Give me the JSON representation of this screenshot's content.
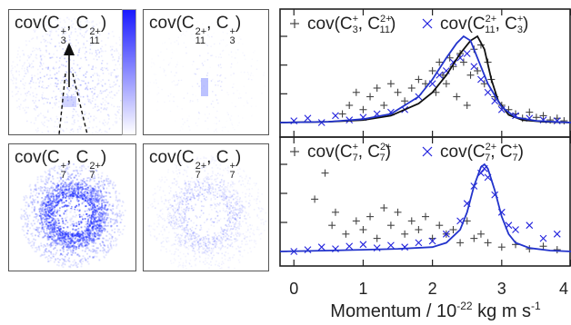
{
  "images": [
    {
      "id": "img-tl",
      "label_main": "cov(C",
      "sub1": "3",
      "sup1": "+",
      "mid": ", C",
      "sub2": "11",
      "sup2": "2+",
      "end": ")",
      "pattern": "narrow-cone"
    },
    {
      "id": "img-tr",
      "label_main": "cov(C",
      "sub1": "11",
      "sup1": "2+",
      "mid": ", C",
      "sub2": "3",
      "sup2": "+",
      "end": ")",
      "pattern": "faint-center"
    },
    {
      "id": "img-bl",
      "label_main": "cov(C",
      "sub1": "7",
      "sup1": "+",
      "mid": ", C",
      "sub2": "7",
      "sup2": "2+",
      "end": ")",
      "pattern": "dense-ring"
    },
    {
      "id": "img-br",
      "label_main": "cov(C",
      "sub1": "7",
      "sup1": "2+",
      "mid": ", C",
      "sub2": "7",
      "sup2": "+",
      "end": ")",
      "pattern": "faint-ring"
    }
  ],
  "colorbar": {
    "color_high": "#1a1aff",
    "color_low": "#ffffff"
  },
  "chart_data": [
    {
      "type": "scatter",
      "panel": "top",
      "xlabel": "Momentum / 10",
      "xlabel_exp": "-22",
      "xlabel_units": "kg m s",
      "xlabel_units_exp": "-1",
      "xlim": [
        -0.2,
        4.0
      ],
      "x_ticks": [
        "0",
        "1",
        "2",
        "3",
        "4"
      ],
      "legend": [
        {
          "marker": "+",
          "color": "#444444",
          "pre": "cov(C",
          "sub1": "3",
          "sup1": "+",
          "mid": ", C",
          "sub2": "11",
          "sup2": "2+",
          "end": ")"
        },
        {
          "marker": "×",
          "color": "#2222dd",
          "pre": "cov(C",
          "sub1": "11",
          "sup1": "2+",
          "mid": ", C",
          "sub2": "3",
          "sup2": "+",
          "end": ")"
        }
      ],
      "series": [
        {
          "marker": "+",
          "color": "#444444",
          "x": [
            0.7,
            0.8,
            0.9,
            1.0,
            1.1,
            1.2,
            1.3,
            1.4,
            1.5,
            1.6,
            1.7,
            1.8,
            1.9,
            2.0,
            2.05,
            2.1,
            2.15,
            2.2,
            2.25,
            2.3,
            2.35,
            2.4,
            2.45,
            2.5,
            2.55,
            2.6,
            2.65,
            2.7,
            2.75,
            2.8,
            2.85,
            2.9,
            3.0,
            3.1,
            3.2,
            3.3,
            3.4,
            3.5,
            3.6,
            3.7,
            3.8,
            3.9
          ],
          "y": [
            0.1,
            0.2,
            0.35,
            0.15,
            0.3,
            0.4,
            0.2,
            0.45,
            0.35,
            0.25,
            0.4,
            0.5,
            0.45,
            0.6,
            0.35,
            0.7,
            0.55,
            0.45,
            0.75,
            0.65,
            0.3,
            0.8,
            0.7,
            0.2,
            0.55,
            0.85,
            0.6,
            0.9,
            0.45,
            0.7,
            0.5,
            0.3,
            0.2,
            0.15,
            0.1,
            0.05,
            0.12,
            0.06,
            0.08,
            0.03,
            0.05,
            0.02
          ]
        },
        {
          "marker": "×",
          "color": "#2222dd",
          "x": [
            0.0,
            0.2,
            0.4,
            0.6,
            0.8,
            1.0,
            1.2,
            1.4,
            1.6,
            1.8,
            2.0,
            2.1,
            2.2,
            2.3,
            2.4,
            2.5,
            2.6,
            2.7,
            2.8,
            2.9,
            3.0,
            3.2,
            3.4,
            3.6,
            3.8
          ],
          "y": [
            0.02,
            0.05,
            0.0,
            0.08,
            0.03,
            0.06,
            0.1,
            0.12,
            0.15,
            0.3,
            0.45,
            0.55,
            0.6,
            0.7,
            0.75,
            0.8,
            0.65,
            0.5,
            0.35,
            0.25,
            0.15,
            0.08,
            0.05,
            0.03,
            0.02
          ]
        },
        {
          "line": true,
          "color": "#111111",
          "x": [
            -0.2,
            0.5,
            1.0,
            1.4,
            1.8,
            2.0,
            2.2,
            2.4,
            2.55,
            2.65,
            2.75,
            2.85,
            2.95,
            3.1,
            3.3,
            3.6,
            4.0
          ],
          "y": [
            0.0,
            0.01,
            0.03,
            0.08,
            0.22,
            0.35,
            0.55,
            0.8,
            0.95,
            1.0,
            0.85,
            0.5,
            0.25,
            0.09,
            0.03,
            0.01,
            0.0
          ]
        },
        {
          "line": true,
          "color": "#2233cc",
          "x": [
            -0.2,
            0.5,
            1.0,
            1.4,
            1.8,
            2.0,
            2.2,
            2.35,
            2.45,
            2.55,
            2.65,
            2.8,
            3.0,
            3.2,
            3.5,
            4.0
          ],
          "y": [
            0.0,
            0.01,
            0.04,
            0.1,
            0.3,
            0.5,
            0.75,
            0.92,
            1.0,
            0.95,
            0.75,
            0.45,
            0.18,
            0.06,
            0.02,
            0.0
          ]
        }
      ]
    },
    {
      "type": "scatter",
      "panel": "bottom",
      "xlim": [
        -0.2,
        4.0
      ],
      "legend": [
        {
          "marker": "+",
          "color": "#444444",
          "pre": "cov(C",
          "sub1": "7",
          "sup1": "+",
          "mid": ", C",
          "sub2": "7",
          "sup2": "2+",
          "end": ")"
        },
        {
          "marker": "×",
          "color": "#2222dd",
          "pre": "cov(C",
          "sub1": "7",
          "sup1": "2+",
          "mid": ", C",
          "sub2": "7",
          "sup2": "+",
          "end": ")"
        }
      ],
      "series": [
        {
          "marker": "+",
          "color": "#444444",
          "x": [
            0.3,
            0.45,
            0.55,
            0.6,
            0.75,
            0.9,
            1.0,
            1.1,
            1.2,
            1.3,
            1.4,
            1.5,
            1.6,
            1.7,
            1.8,
            1.9,
            2.0,
            2.1,
            2.2,
            2.3,
            2.4,
            2.5,
            2.6,
            2.7,
            2.8,
            3.0,
            3.2,
            3.4,
            3.6,
            3.8,
            3.95
          ],
          "y": [
            0.6,
            0.9,
            0.3,
            0.45,
            0.2,
            0.35,
            0.25,
            0.4,
            0.15,
            0.5,
            0.3,
            0.45,
            0.2,
            0.35,
            0.25,
            0.4,
            0.15,
            0.3,
            0.2,
            0.25,
            0.1,
            0.35,
            0.15,
            0.2,
            0.1,
            0.05,
            0.08,
            0.03,
            0.06,
            0.02,
            0.04
          ]
        },
        {
          "marker": "×",
          "color": "#2222dd",
          "x": [
            0.0,
            0.2,
            0.4,
            0.6,
            0.8,
            1.0,
            1.2,
            1.4,
            1.6,
            1.8,
            2.0,
            2.2,
            2.4,
            2.5,
            2.6,
            2.7,
            2.75,
            2.8,
            2.9,
            3.0,
            3.1,
            3.2,
            3.4,
            3.6,
            3.8,
            3.95
          ],
          "y": [
            0.0,
            0.02,
            0.05,
            0.03,
            0.06,
            0.08,
            0.04,
            0.07,
            0.05,
            0.1,
            0.12,
            0.2,
            0.35,
            0.55,
            0.75,
            0.9,
            0.95,
            0.85,
            0.65,
            0.45,
            0.3,
            0.25,
            0.3,
            0.15,
            0.2,
            0.1
          ]
        },
        {
          "line": true,
          "color": "#2233cc",
          "x": [
            -0.2,
            0.5,
            1.0,
            1.5,
            2.0,
            2.2,
            2.4,
            2.5,
            2.6,
            2.7,
            2.75,
            2.8,
            2.9,
            3.0,
            3.1,
            3.2,
            3.4,
            3.7,
            4.0
          ],
          "y": [
            0.0,
            0.01,
            0.02,
            0.03,
            0.05,
            0.1,
            0.25,
            0.45,
            0.75,
            0.97,
            1.0,
            0.95,
            0.7,
            0.4,
            0.2,
            0.1,
            0.04,
            0.01,
            0.0
          ]
        }
      ]
    }
  ]
}
